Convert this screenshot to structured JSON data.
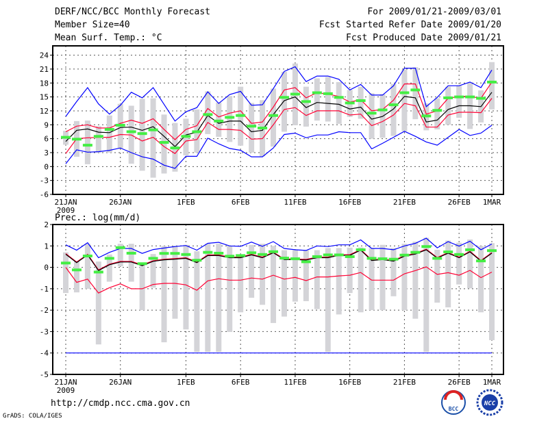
{
  "header": {
    "title": "DERF/NCC/BCC Monthly Forecast",
    "member": "Member Size=40",
    "variable": "Mean Surf. Temp.: °C",
    "period": "For 2009/01/21-2009/03/01",
    "started": "Fcst Started Refer Date 2009/01/20",
    "produced": "Fcst Produced Date 2009/01/21"
  },
  "footer": {
    "url": "http://cmdp.ncc.cma.gov.cn",
    "grads": "GrADS: COLA/IGES",
    "logo_bcc": "BCC",
    "logo_ncc": "NCC"
  },
  "colors": {
    "max_min": "#0000ff",
    "std": "#ff0033",
    "mean": "#000000",
    "obs": "#44ee44",
    "range": "#d4d4d8"
  },
  "chart_data": [
    {
      "type": "line",
      "title": "Mean Surf. Temp.: °C",
      "ylim": [
        -6,
        26
      ],
      "yticks": [
        -6,
        -3,
        0,
        3,
        6,
        9,
        12,
        15,
        18,
        21,
        24
      ],
      "xtick_labels": [
        "21JAN",
        "26JAN",
        "1FEB",
        "6FEB",
        "11FEB",
        "16FEB",
        "21FEB",
        "26FEB",
        "1MAR"
      ],
      "xtick_days": [
        0,
        5,
        11,
        16,
        21,
        26,
        31,
        36,
        39
      ],
      "xtick_sub": "2009",
      "grid": true,
      "days": 40,
      "series": [
        {
          "name": "max",
          "color": "blue",
          "values": [
            10.8,
            14,
            17,
            13.5,
            11.3,
            13.2,
            16,
            14.8,
            17,
            13.4,
            9.8,
            11.8,
            12.7,
            16.1,
            13.6,
            15.5,
            16.2,
            13.2,
            13.3,
            16.8,
            20.5,
            21.5,
            18.3,
            19.5,
            19.5,
            18.8,
            16.5,
            17.7,
            15.4,
            15.4,
            17.4,
            21.2,
            21.2,
            12.9,
            14.9,
            17.4,
            17.4,
            18.2,
            17.0,
            20.8
          ]
        },
        {
          "name": "mean+std",
          "color": "red",
          "values": [
            7.5,
            8.7,
            9.0,
            8.3,
            8.3,
            9.3,
            10.0,
            9.3,
            10.3,
            8.0,
            5.8,
            8.0,
            8.8,
            12.5,
            10.7,
            11.5,
            12.0,
            9.3,
            9.6,
            12.8,
            16.5,
            17.0,
            14.8,
            15.9,
            15.6,
            15.1,
            13.9,
            14.4,
            12.0,
            12.3,
            14.3,
            17.8,
            17.8,
            11.3,
            12.0,
            14.7,
            15.1,
            15.1,
            14.7,
            18.2
          ]
        },
        {
          "name": "mean",
          "color": "black",
          "values": [
            5.4,
            7.8,
            8.1,
            7.4,
            7.3,
            8.4,
            8.5,
            7.8,
            8.6,
            6.5,
            4.3,
            6.8,
            7.4,
            11.0,
            9.3,
            9.8,
            9.8,
            7.5,
            7.8,
            11.2,
            14.2,
            15.0,
            12.7,
            13.8,
            13.6,
            13.4,
            12.4,
            12.8,
            10.2,
            10.8,
            12.4,
            15.1,
            14.8,
            9.6,
            10.0,
            12.3,
            13.1,
            13.1,
            12.9,
            16.0
          ]
        },
        {
          "name": "mean-std",
          "color": "red",
          "values": [
            2.8,
            6.0,
            6.2,
            6.3,
            6.3,
            6.9,
            6.8,
            5.5,
            6.3,
            4.3,
            2.8,
            5.5,
            5.8,
            9.5,
            8.0,
            8.0,
            7.8,
            5.9,
            6.0,
            9.0,
            12.3,
            12.7,
            11.0,
            12.0,
            12.0,
            12.0,
            11.1,
            11.3,
            8.8,
            9.7,
            11.1,
            13.6,
            13.1,
            8.5,
            8.5,
            11.1,
            11.7,
            11.7,
            11.6,
            14.7
          ]
        },
        {
          "name": "min",
          "color": "blue",
          "values": [
            0.6,
            3.6,
            3.1,
            3.2,
            3.5,
            4.0,
            3.0,
            2.1,
            1.6,
            0.3,
            -0.4,
            2.2,
            2.2,
            6.1,
            4.9,
            3.9,
            3.5,
            2.1,
            2.1,
            4.0,
            6.9,
            7.2,
            6.2,
            6.8,
            6.8,
            7.5,
            7.3,
            7.3,
            3.8,
            5.0,
            6.3,
            7.6,
            6.5,
            5.3,
            4.6,
            6.3,
            8.0,
            6.7,
            7.2,
            8.9
          ]
        }
      ],
      "marks": [
        6.3,
        5.9,
        4.6,
        6.5,
        8.0,
        8.9,
        7.5,
        7.1,
        7.9,
        5.2,
        4.0,
        6.5,
        7.5,
        11.2,
        9.8,
        10.6,
        11.0,
        8.7,
        8.3,
        11.0,
        14.9,
        15.6,
        14.0,
        15.9,
        15.7,
        14.9,
        13.7,
        14.2,
        11.5,
        12.2,
        13.3,
        15.9,
        16.5,
        10.9,
        12.1,
        14.8,
        15.0,
        15.0,
        14.7,
        18.2
      ],
      "ranges": [
        [
          4.7,
          7.7
        ],
        [
          2.1,
          9.8
        ],
        [
          0.5,
          9.9
        ],
        [
          3.0,
          8.7
        ],
        [
          3.0,
          11.0
        ],
        [
          4.0,
          13.5
        ],
        [
          0.6,
          13.1
        ],
        [
          -0.9,
          14.6
        ],
        [
          -2.4,
          14.7
        ],
        [
          -1.5,
          11.2
        ],
        [
          -1.1,
          9.4
        ],
        [
          2.4,
          10.3
        ],
        [
          3.0,
          12.3
        ],
        [
          7.0,
          16.2
        ],
        [
          6.4,
          13.8
        ],
        [
          5.3,
          15.2
        ],
        [
          4.5,
          17.2
        ],
        [
          3.0,
          13.7
        ],
        [
          2.2,
          14.3
        ],
        [
          4.3,
          16.8
        ],
        [
          7.5,
          20.4
        ],
        [
          8.9,
          22.2
        ],
        [
          8.6,
          17.2
        ],
        [
          9.9,
          19.0
        ],
        [
          9.7,
          19.3
        ],
        [
          9.2,
          18.2
        ],
        [
          10.7,
          16.5
        ],
        [
          10.3,
          17.2
        ],
        [
          6.0,
          15.8
        ],
        [
          6.2,
          15.6
        ],
        [
          6.6,
          17.8
        ],
        [
          7.6,
          20.9
        ],
        [
          10.2,
          21.4
        ],
        [
          7.8,
          13.6
        ],
        [
          8.0,
          14.7
        ],
        [
          9.0,
          17.2
        ],
        [
          10.5,
          17.4
        ],
        [
          8.1,
          18.1
        ],
        [
          9.5,
          16.4
        ],
        [
          12.3,
          22.5
        ]
      ]
    },
    {
      "type": "line",
      "title": "Prec.: log(mm/d)",
      "ylim": [
        -5,
        2
      ],
      "yticks": [
        -5,
        -4,
        -3,
        -2,
        -1,
        0,
        1,
        2
      ],
      "xtick_labels": [
        "21JAN",
        "26JAN",
        "1FEB",
        "6FEB",
        "11FEB",
        "16FEB",
        "21FEB",
        "26FEB",
        "1MAR"
      ],
      "xtick_days": [
        0,
        5,
        11,
        16,
        21,
        26,
        31,
        36,
        39
      ],
      "xtick_sub": "2009",
      "grid": true,
      "days": 40,
      "series": [
        {
          "name": "max",
          "color": "blue",
          "values": [
            1.05,
            0.8,
            1.15,
            0.45,
            0.7,
            0.88,
            0.88,
            0.65,
            0.83,
            0.9,
            0.97,
            1.02,
            0.8,
            1.12,
            1.17,
            1.0,
            0.98,
            1.18,
            0.98,
            1.2,
            0.88,
            0.82,
            0.79,
            1.0,
            0.97,
            1.05,
            1.05,
            1.28,
            0.88,
            0.88,
            0.82,
            1.0,
            1.12,
            1.36,
            0.91,
            1.2,
            0.99,
            1.22,
            0.82,
            1.09
          ]
        },
        {
          "name": "mean+std",
          "color": "red",
          "values": [
            0.64,
            0.25,
            0.61,
            -0.12,
            0.15,
            0.28,
            0.28,
            0.11,
            0.31,
            0.38,
            0.41,
            0.45,
            0.25,
            0.58,
            0.58,
            0.48,
            0.48,
            0.61,
            0.48,
            0.71,
            0.39,
            0.39,
            0.37,
            0.48,
            0.48,
            0.59,
            0.59,
            0.83,
            0.35,
            0.39,
            0.32,
            0.55,
            0.65,
            0.85,
            0.46,
            0.69,
            0.48,
            0.75,
            0.32,
            0.69
          ]
        },
        {
          "name": "mean",
          "color": "black",
          "values": [
            0.61,
            0.22,
            0.58,
            -0.15,
            0.12,
            0.25,
            0.25,
            0.08,
            0.28,
            0.35,
            0.38,
            0.42,
            0.22,
            0.55,
            0.55,
            0.45,
            0.45,
            0.58,
            0.45,
            0.68,
            0.36,
            0.36,
            0.34,
            0.45,
            0.45,
            0.56,
            0.56,
            0.8,
            0.32,
            0.36,
            0.29,
            0.52,
            0.62,
            0.82,
            0.43,
            0.66,
            0.45,
            0.72,
            0.29,
            0.66
          ]
        },
        {
          "name": "mean-std",
          "color": "red",
          "values": [
            0.0,
            -0.7,
            -0.55,
            -1.2,
            -0.95,
            -0.77,
            -1.0,
            -1.0,
            -0.8,
            -0.75,
            -0.75,
            -0.82,
            -1.07,
            -0.63,
            -0.53,
            -0.6,
            -0.6,
            -0.5,
            -0.55,
            -0.37,
            -0.55,
            -0.47,
            -0.62,
            -0.45,
            -0.45,
            -0.4,
            -0.37,
            -0.24,
            -0.6,
            -0.6,
            -0.6,
            -0.3,
            -0.15,
            0.02,
            -0.33,
            -0.25,
            -0.37,
            -0.14,
            -0.48,
            -0.22
          ]
        },
        {
          "name": "min",
          "color": "blue",
          "values": [
            -4,
            -4,
            -4,
            -4,
            -4,
            -4,
            -4,
            -4,
            -4,
            -4,
            -4,
            -4,
            -4,
            -4,
            -4,
            -4,
            -4,
            -4,
            -4,
            -4,
            -4,
            -4,
            -4,
            -4,
            -4,
            -4,
            -4,
            -4,
            -4,
            -4,
            -4,
            -4,
            -4,
            -4,
            -4,
            -4,
            -4,
            -4,
            -4,
            -4
          ]
        }
      ],
      "marks": [
        0.2,
        -0.12,
        0.53,
        -0.22,
        0.42,
        0.92,
        0.66,
        0.17,
        0.42,
        0.65,
        0.65,
        0.6,
        0.33,
        0.7,
        0.66,
        0.52,
        0.55,
        0.68,
        0.6,
        0.73,
        0.43,
        0.4,
        0.26,
        0.5,
        0.58,
        0.58,
        0.5,
        0.82,
        0.42,
        0.4,
        0.38,
        0.57,
        0.7,
        0.97,
        0.42,
        0.72,
        0.6,
        0.82,
        0.3,
        0.78
      ],
      "ranges": [
        [
          -1.2,
          0.7
        ],
        [
          -1.17,
          0.3
        ],
        [
          -1.0,
          1.1
        ],
        [
          -3.6,
          0.27
        ],
        [
          -0.67,
          0.6
        ],
        [
          0.05,
          1.1
        ],
        [
          -0.67,
          1.1
        ],
        [
          -2.0,
          0.2
        ],
        [
          -0.95,
          0.62
        ],
        [
          -3.5,
          1.0
        ],
        [
          -2.4,
          1.0
        ],
        [
          -2.9,
          1.05
        ],
        [
          -3.95,
          0.75
        ],
        [
          -3.95,
          1.1
        ],
        [
          -3.95,
          1.1
        ],
        [
          -3.02,
          1.0
        ],
        [
          -2.1,
          0.6
        ],
        [
          -1.42,
          1.05
        ],
        [
          -1.75,
          1.1
        ],
        [
          -2.6,
          1.0
        ],
        [
          -2.3,
          0.8
        ],
        [
          -1.6,
          0.8
        ],
        [
          -1.58,
          0.8
        ],
        [
          -1.95,
          0.8
        ],
        [
          -3.95,
          0.9
        ],
        [
          -2.2,
          0.9
        ],
        [
          -1.2,
          0.92
        ],
        [
          -2.1,
          0.93
        ],
        [
          -2.0,
          0.9
        ],
        [
          -2.0,
          1.05
        ],
        [
          -1.35,
          0.9
        ],
        [
          -2.0,
          1.1
        ],
        [
          -2.4,
          1.2
        ],
        [
          -3.95,
          1.38
        ],
        [
          -1.65,
          0.82
        ],
        [
          -1.87,
          1.25
        ],
        [
          -0.8,
          1.15
        ],
        [
          -0.98,
          1.3
        ],
        [
          -2.1,
          1.0
        ],
        [
          -3.4,
          1.13
        ]
      ]
    }
  ]
}
